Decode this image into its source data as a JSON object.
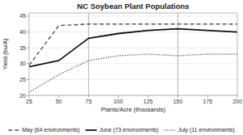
{
  "chart_data": {
    "type": "line",
    "title": "NC Soybean Plant Populations",
    "xlabel": "Plants/Acre (thousands)",
    "ylabel": "Yield (bu/A)",
    "x": [
      25,
      50,
      75,
      100,
      125,
      150,
      175,
      200
    ],
    "series": [
      {
        "name": "May (64 environments)",
        "color": "#555555",
        "line_style": "dashed",
        "values": [
          29.5,
          42.0,
          42.5,
          42.5,
          42.5,
          42.5,
          42.5,
          42.5
        ]
      },
      {
        "name": "June (73 environments)",
        "color": "#111111",
        "line_style": "solid",
        "values": [
          29.0,
          31.0,
          38.0,
          39.5,
          40.5,
          41.0,
          40.5,
          40.0
        ]
      },
      {
        "name": "July (11 environments)",
        "color": "#555555",
        "line_style": "dotted",
        "values": [
          21.0,
          26.5,
          31.0,
          32.5,
          33.0,
          32.5,
          33.0,
          33.0
        ]
      }
    ],
    "xlim": [
      25,
      200
    ],
    "ylim": [
      20,
      46
    ],
    "xticks": [
      25,
      50,
      75,
      100,
      125,
      150,
      175,
      200
    ],
    "yticks": [
      20,
      25,
      30,
      35,
      40,
      45
    ],
    "reference_lines": {
      "x": [
        75,
        150
      ],
      "color": "#b0b0b0"
    },
    "grid": true,
    "legend": "bottom"
  }
}
